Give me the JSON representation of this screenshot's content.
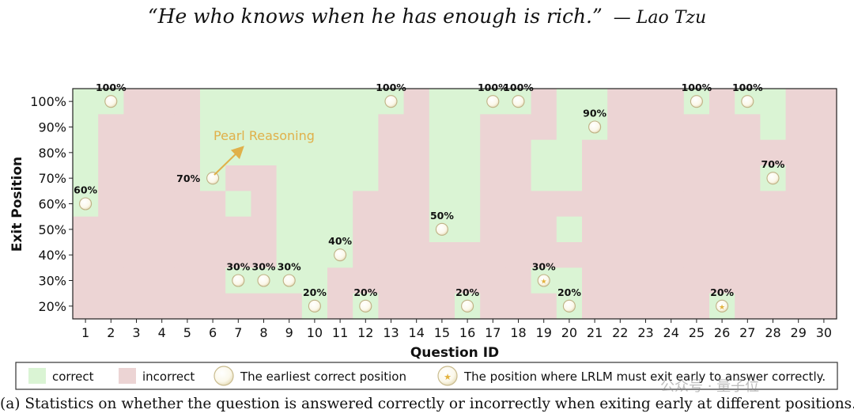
{
  "header": {
    "quote": "“He who knows when he has enough is rich.”",
    "author": "— Lao Tzu"
  },
  "caption": "(a) Statistics on whether the question is answered correctly or incorrectly when exiting early at different positions.",
  "annotation": {
    "text": "Pearl Reasoning",
    "points_to_question": 6,
    "points_to_exit": 70
  },
  "legend": {
    "correct": "correct",
    "incorrect": "incorrect",
    "earliest": "The earliest correct position",
    "must_exit": "The position where LRLM must exit early to answer correctly."
  },
  "watermark": "公众号 · 量子位",
  "colors": {
    "correct": "#daf4d4",
    "incorrect": "#ecd4d4",
    "annotation": "#e0b04a"
  },
  "chart_data": {
    "type": "heatmap",
    "xlabel": "Question ID",
    "ylabel": "Exit Position",
    "x": [
      1,
      2,
      3,
      4,
      5,
      6,
      7,
      8,
      9,
      10,
      11,
      12,
      13,
      14,
      15,
      16,
      17,
      18,
      19,
      20,
      21,
      22,
      23,
      24,
      25,
      26,
      27,
      28,
      29,
      30
    ],
    "y": [
      "20%",
      "30%",
      "40%",
      "50%",
      "60%",
      "70%",
      "80%",
      "90%",
      "100%"
    ],
    "y_ticks": [
      "100%",
      "90%",
      "80%",
      "70%",
      "60%",
      "50%",
      "40%",
      "30%",
      "20%"
    ],
    "x_ticks": [
      "1",
      "2",
      "3",
      "4",
      "5",
      "6",
      "7",
      "8",
      "9",
      "10",
      "11",
      "12",
      "13",
      "14",
      "15",
      "16",
      "17",
      "18",
      "19",
      "20",
      "21",
      "22",
      "23",
      "24",
      "25",
      "26",
      "27",
      "28",
      "29",
      "30"
    ],
    "correct_by_question": [
      [
        60,
        70,
        80,
        90,
        100
      ],
      [
        100
      ],
      [],
      [],
      [],
      [
        70,
        80,
        90,
        100
      ],
      [
        30,
        60,
        80,
        90,
        100
      ],
      [
        30,
        80,
        90,
        100
      ],
      [
        30,
        40,
        50,
        60,
        70,
        80,
        90,
        100
      ],
      [
        20,
        30,
        40,
        50,
        60,
        70,
        80,
        90,
        100
      ],
      [
        40,
        50,
        60,
        70,
        80,
        90,
        100
      ],
      [
        20,
        70,
        80,
        90,
        100
      ],
      [
        100
      ],
      [],
      [
        50,
        60,
        70,
        80,
        90,
        100
      ],
      [
        20,
        50,
        60,
        70,
        80,
        90,
        100
      ],
      [
        100
      ],
      [
        100
      ],
      [
        30,
        70,
        80
      ],
      [
        20,
        30,
        50,
        70,
        80,
        90,
        100
      ],
      [
        90,
        100
      ],
      [],
      [],
      [],
      [
        100
      ],
      [
        20
      ],
      [
        100
      ],
      [
        70,
        90,
        100
      ],
      [],
      []
    ],
    "earliest_correct": [
      {
        "q": 1,
        "exit": 60,
        "label": "60%"
      },
      {
        "q": 2,
        "exit": 100,
        "label": "100%"
      },
      {
        "q": 6,
        "exit": 70,
        "label": "70%"
      },
      {
        "q": 7,
        "exit": 30,
        "label": "30%"
      },
      {
        "q": 8,
        "exit": 30,
        "label": "30%"
      },
      {
        "q": 9,
        "exit": 30,
        "label": "30%"
      },
      {
        "q": 10,
        "exit": 20,
        "label": "20%"
      },
      {
        "q": 11,
        "exit": 40,
        "label": "40%"
      },
      {
        "q": 12,
        "exit": 20,
        "label": "20%"
      },
      {
        "q": 13,
        "exit": 100,
        "label": "100%"
      },
      {
        "q": 15,
        "exit": 50,
        "label": "50%"
      },
      {
        "q": 16,
        "exit": 20,
        "label": "20%"
      },
      {
        "q": 17,
        "exit": 100,
        "label": "100%"
      },
      {
        "q": 18,
        "exit": 100,
        "label": "100%"
      },
      {
        "q": 19,
        "exit": 30,
        "label": "30%",
        "must_exit": true
      },
      {
        "q": 20,
        "exit": 20,
        "label": "20%"
      },
      {
        "q": 21,
        "exit": 90,
        "label": "90%"
      },
      {
        "q": 25,
        "exit": 100,
        "label": "100%"
      },
      {
        "q": 26,
        "exit": 20,
        "label": "20%",
        "must_exit": true
      },
      {
        "q": 27,
        "exit": 100,
        "label": "100%"
      },
      {
        "q": 28,
        "exit": 70,
        "label": "70%"
      }
    ]
  }
}
